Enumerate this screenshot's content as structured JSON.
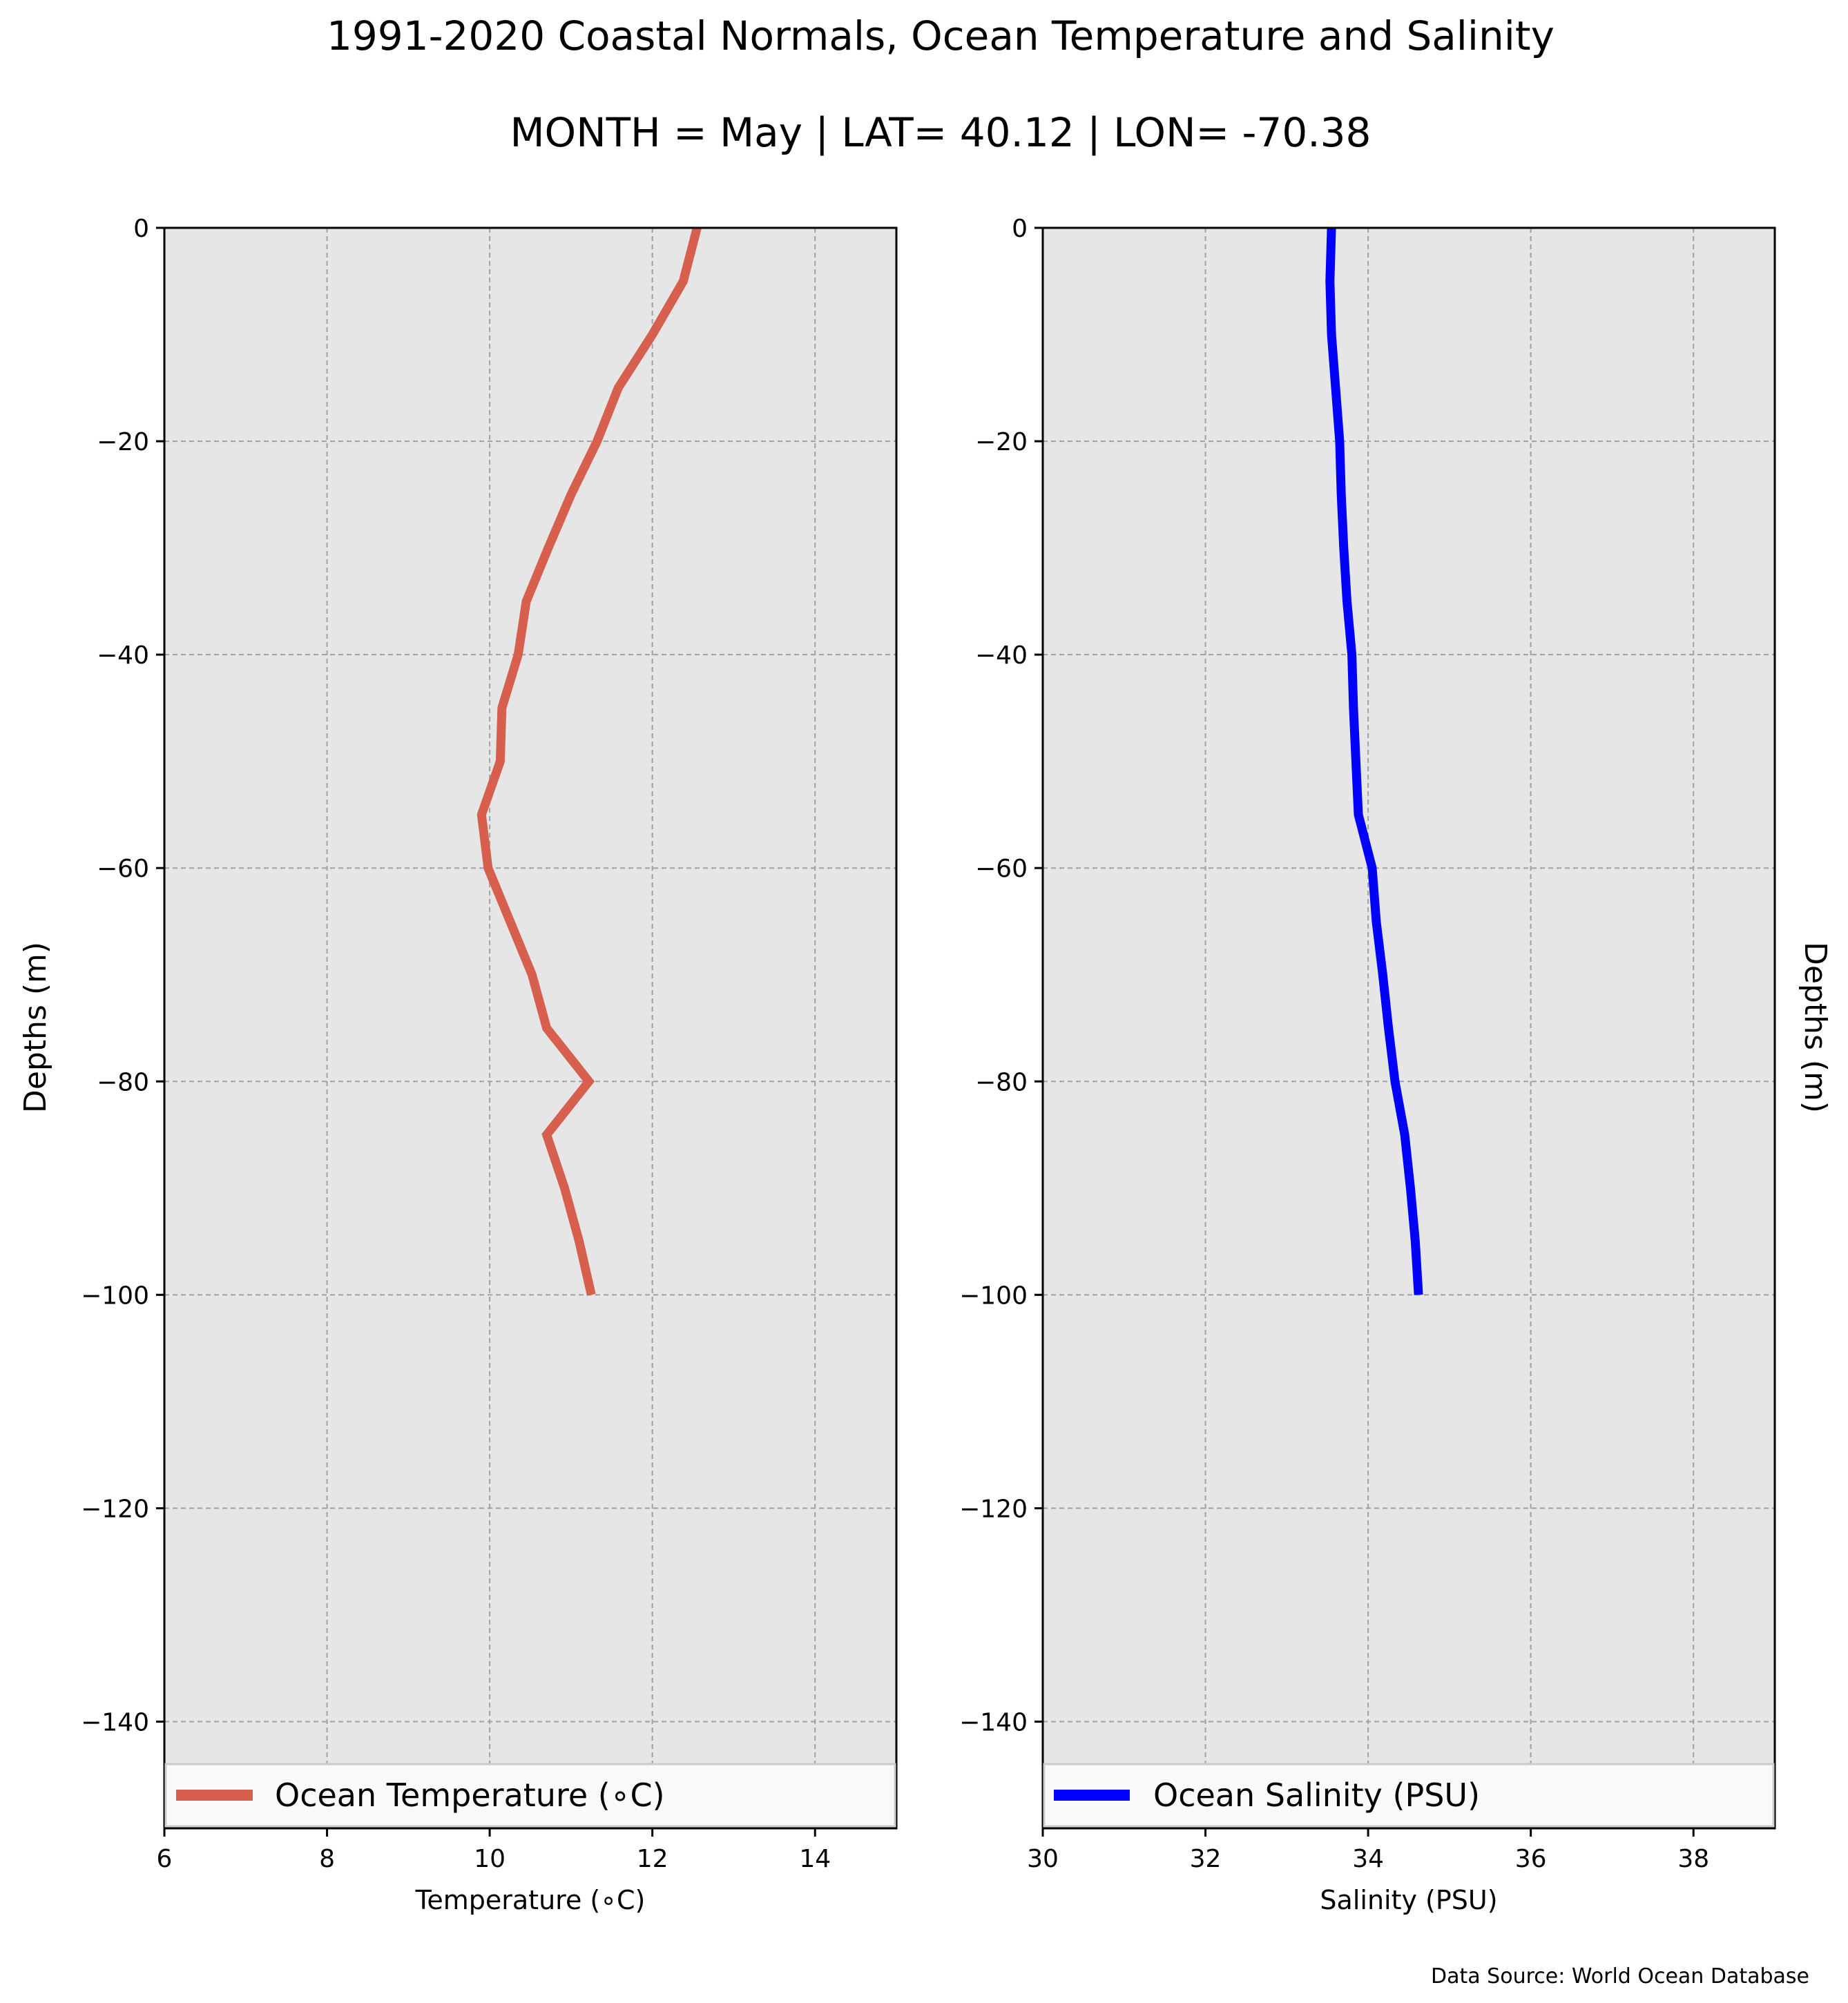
{
  "title": "1991-2020 Coastal Normals, Ocean Temperature and Salinity",
  "subtitle": "MONTH = May | LAT= 40.12 | LON= -70.38",
  "source": "Data Source: World Ocean Database",
  "colors": {
    "plot_bg": "#e6e6e6",
    "temperature": "#d6604d",
    "salinity": "#0000ff",
    "grid": "#a0a0a0"
  },
  "chart_data": [
    {
      "type": "line",
      "xlabel": "Temperature (∘C)",
      "ylabel": "Depths (m)",
      "xlim": [
        6,
        15
      ],
      "ylim": [
        -150,
        0
      ],
      "xticks": [
        6,
        8,
        10,
        12,
        14
      ],
      "xticklabels": [
        "6",
        "8",
        "10",
        "12",
        "14"
      ],
      "yticks": [
        0,
        -20,
        -40,
        -60,
        -80,
        -100,
        -120,
        -140
      ],
      "yticklabels": [
        "0",
        "−20",
        "−40",
        "−60",
        "−80",
        "−100",
        "−120",
        "−140"
      ],
      "grid": true,
      "legend_position": "bottom",
      "series": [
        {
          "name": "Ocean Temperature (∘C)",
          "color": "#d6604d",
          "x": [
            12.55,
            12.38,
            12.0,
            11.58,
            11.32,
            11.0,
            10.72,
            10.45,
            10.35,
            10.15,
            10.13,
            9.9,
            9.98,
            10.25,
            10.52,
            10.7,
            11.22,
            10.7,
            10.92,
            11.1,
            11.25
          ],
          "y": [
            0,
            -5,
            -10,
            -15,
            -20,
            -25,
            -30,
            -35,
            -40,
            -45,
            -50,
            -55,
            -60,
            -65,
            -70,
            -75,
            -80,
            -85,
            -90,
            -95,
            -100
          ]
        }
      ]
    },
    {
      "type": "line",
      "xlabel": "Salinity (PSU)",
      "ylabel": "Depths (m)",
      "xlim": [
        30,
        39
      ],
      "ylim": [
        -150,
        0
      ],
      "xticks": [
        30,
        32,
        34,
        36,
        38
      ],
      "xticklabels": [
        "30",
        "32",
        "34",
        "36",
        "38"
      ],
      "yticks": [
        0,
        -20,
        -40,
        -60,
        -80,
        -100,
        -120,
        -140
      ],
      "yticklabels": [
        "0",
        "−20",
        "−40",
        "−60",
        "−80",
        "−100",
        "−120",
        "−140"
      ],
      "grid": true,
      "legend_position": "bottom",
      "series": [
        {
          "name": "Ocean Salinity (PSU)",
          "color": "#0000ff",
          "x": [
            33.55,
            33.53,
            33.55,
            33.6,
            33.65,
            33.67,
            33.7,
            33.74,
            33.8,
            33.82,
            33.85,
            33.88,
            34.05,
            34.1,
            34.18,
            34.25,
            34.33,
            34.45,
            34.52,
            34.58,
            34.62
          ],
          "y": [
            0,
            -5,
            -10,
            -15,
            -20,
            -25,
            -30,
            -35,
            -40,
            -45,
            -50,
            -55,
            -60,
            -65,
            -70,
            -75,
            -80,
            -85,
            -90,
            -95,
            -100
          ]
        }
      ]
    }
  ]
}
